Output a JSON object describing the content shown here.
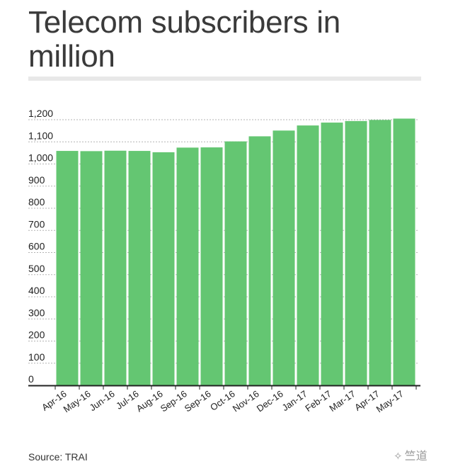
{
  "title": "Telecom subscribers in million",
  "source": "Source: TRAI",
  "watermark": "竺道",
  "watermark_icon": "wechat-icon",
  "colors": {
    "bar": "#64c672",
    "grid": "#b3b3b3",
    "text": "#222222",
    "axis": "#222222"
  },
  "chart_data": {
    "type": "bar",
    "title": "Telecom subscribers in million",
    "xlabel": "",
    "ylabel": "",
    "categories": [
      "Apr-16",
      "May-16",
      "Jun-16",
      "Jul-16",
      "Aug-16",
      "Sep-16",
      "Sep-16",
      "Oct-16",
      "Nov-16",
      "Dec-16",
      "Jan-17",
      "Feb-17",
      "Mar-17",
      "Apr-17",
      "May-17"
    ],
    "values": [
      1059,
      1058,
      1060,
      1059,
      1053,
      1074,
      1075,
      1102,
      1125,
      1151,
      1174,
      1187,
      1194,
      1199,
      1205
    ],
    "ylim": [
      0,
      1200
    ],
    "yticks": [
      0,
      100,
      200,
      300,
      400,
      500,
      600,
      700,
      800,
      900,
      1000,
      1100,
      1200
    ],
    "ytick_labels": [
      "0",
      "100",
      "200",
      "300",
      "400",
      "500",
      "600",
      "700",
      "800",
      "900",
      "1,000",
      "1,100",
      "1,200"
    ],
    "grid": true,
    "legend": "none"
  }
}
